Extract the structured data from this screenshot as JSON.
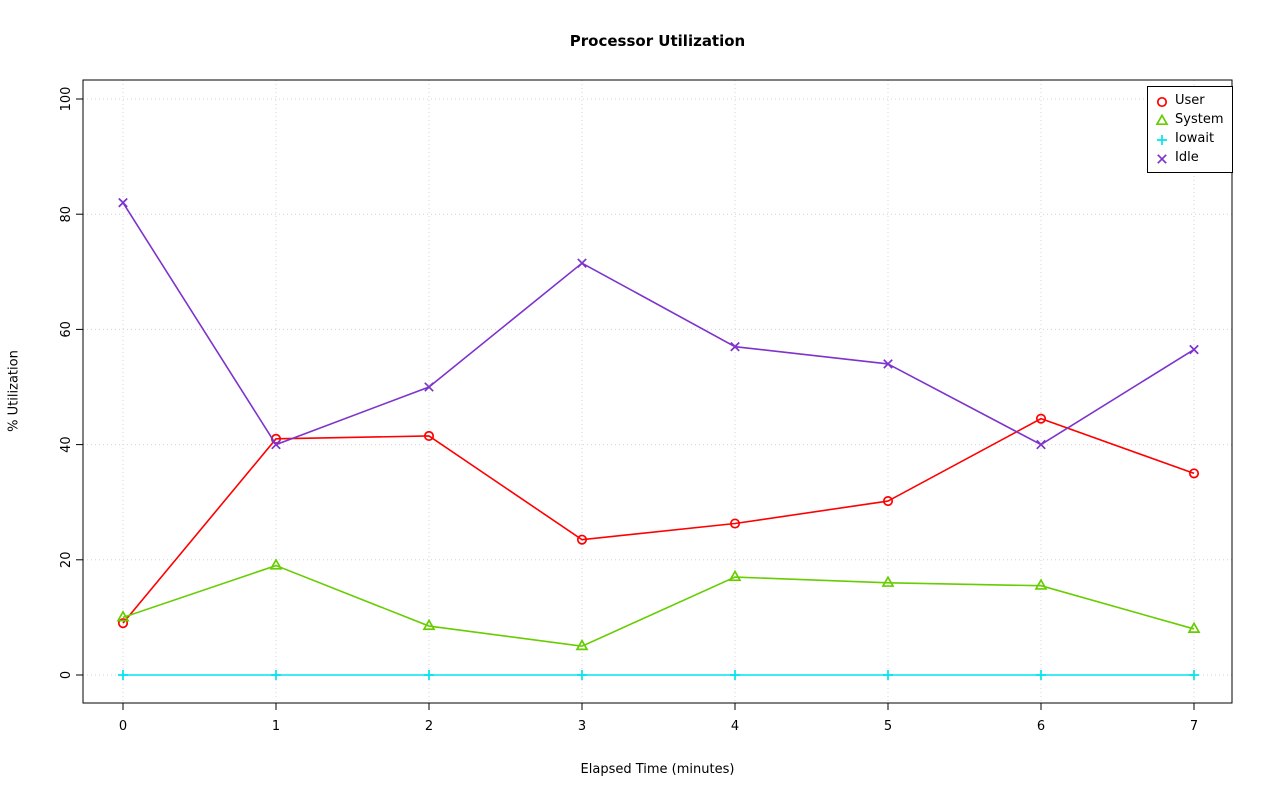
{
  "chart_data": {
    "type": "line",
    "title": "Processor Utilization",
    "xlabel": "Elapsed Time (minutes)",
    "ylabel": "% Utilization",
    "x": [
      0,
      1,
      2,
      3,
      4,
      5,
      6,
      7
    ],
    "xlim": [
      0,
      7
    ],
    "ylim": [
      0,
      100
    ],
    "x_ticks": [
      0,
      1,
      2,
      3,
      4,
      5,
      6,
      7
    ],
    "y_ticks": [
      0,
      20,
      40,
      60,
      80,
      100
    ],
    "grid": true,
    "grid_style": "dotted-lightgray",
    "legend_position": "top-right",
    "series": [
      {
        "name": "User",
        "color": "#FF0000",
        "marker": "circle",
        "values": [
          9,
          41,
          41.5,
          23.5,
          26.3,
          30.2,
          44.5,
          35
        ]
      },
      {
        "name": "System",
        "color": "#66CD00",
        "marker": "triangle",
        "values": [
          10,
          19,
          8.5,
          5,
          17,
          16,
          15.5,
          8
        ]
      },
      {
        "name": "Iowait",
        "color": "#00E5EE",
        "marker": "plus",
        "values": [
          0,
          0,
          0,
          0,
          0,
          0,
          0,
          0
        ]
      },
      {
        "name": "Idle",
        "color": "#7D33CC",
        "marker": "x",
        "values": [
          82,
          40,
          50,
          71.5,
          57,
          54,
          40,
          56.5
        ]
      }
    ]
  }
}
